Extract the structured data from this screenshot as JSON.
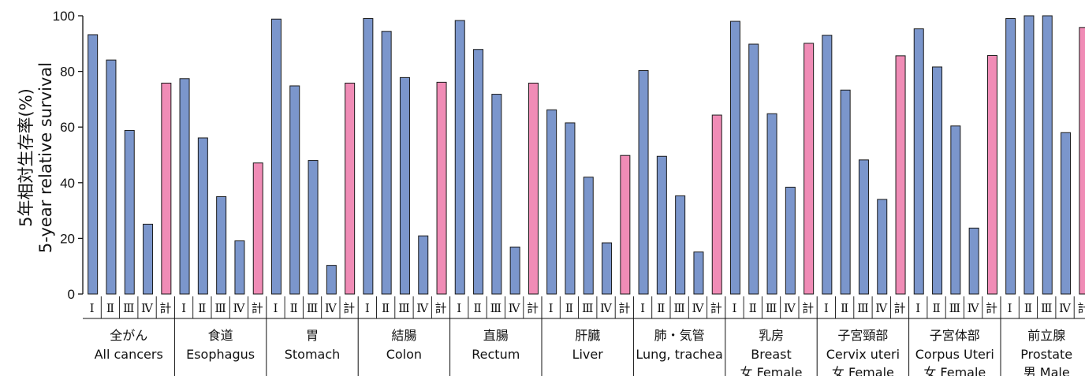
{
  "chart_data": {
    "type": "bar",
    "ylabel": [
      "5年相対生存率(%)",
      "5-year relative survival"
    ],
    "ylim": [
      0,
      100
    ],
    "yticks": [
      0,
      20,
      40,
      60,
      80,
      100
    ],
    "stage_labels": [
      "Ⅰ",
      "Ⅱ",
      "Ⅲ",
      "Ⅳ",
      "計"
    ],
    "colors": {
      "stage": "#7b96cc",
      "total": "#f08cb6",
      "stroke": "#1a1a1a"
    },
    "groups": [
      {
        "label_ja": "全がん",
        "label_en": "All cancers",
        "sex": "",
        "values": [
          93.2,
          84.1,
          58.8,
          25.1,
          75.8
        ]
      },
      {
        "label_ja": "食道",
        "label_en": "Esophagus",
        "sex": "",
        "values": [
          77.4,
          56.1,
          35.0,
          19.1,
          47.1
        ]
      },
      {
        "label_ja": "胃",
        "label_en": "Stomach",
        "sex": "",
        "values": [
          98.8,
          74.8,
          48.0,
          10.3,
          75.8
        ]
      },
      {
        "label_ja": "結腸",
        "label_en": "Colon",
        "sex": "",
        "values": [
          99.0,
          94.4,
          77.8,
          20.9,
          76.1
        ]
      },
      {
        "label_ja": "直腸",
        "label_en": "Rectum",
        "sex": "",
        "values": [
          98.3,
          87.9,
          71.8,
          16.9,
          75.8
        ]
      },
      {
        "label_ja": "肝臓",
        "label_en": "Liver",
        "sex": "",
        "values": [
          66.2,
          61.5,
          42.0,
          18.4,
          49.8
        ]
      },
      {
        "label_ja": "肺・気管",
        "label_en": "Lung, trachea",
        "sex": "",
        "values": [
          80.3,
          49.5,
          35.3,
          15.1,
          64.3
        ]
      },
      {
        "label_ja": "乳房",
        "label_en": "Breast",
        "sex": "女 Female",
        "values": [
          98.0,
          89.8,
          64.8,
          38.4,
          90.1
        ]
      },
      {
        "label_ja": "子宮頸部",
        "label_en": "Cervix uteri",
        "sex": "女 Female",
        "values": [
          93.0,
          73.3,
          48.2,
          34.0,
          85.6
        ]
      },
      {
        "label_ja": "子宮体部",
        "label_en": "Corpus Uteri",
        "sex": "女 Female",
        "values": [
          95.3,
          81.6,
          60.4,
          23.7,
          85.7
        ]
      },
      {
        "label_ja": "前立腺",
        "label_en": "Prostate",
        "sex": "男 Male",
        "values": [
          99.0,
          100.0,
          100.0,
          58.0,
          95.8
        ]
      }
    ]
  }
}
